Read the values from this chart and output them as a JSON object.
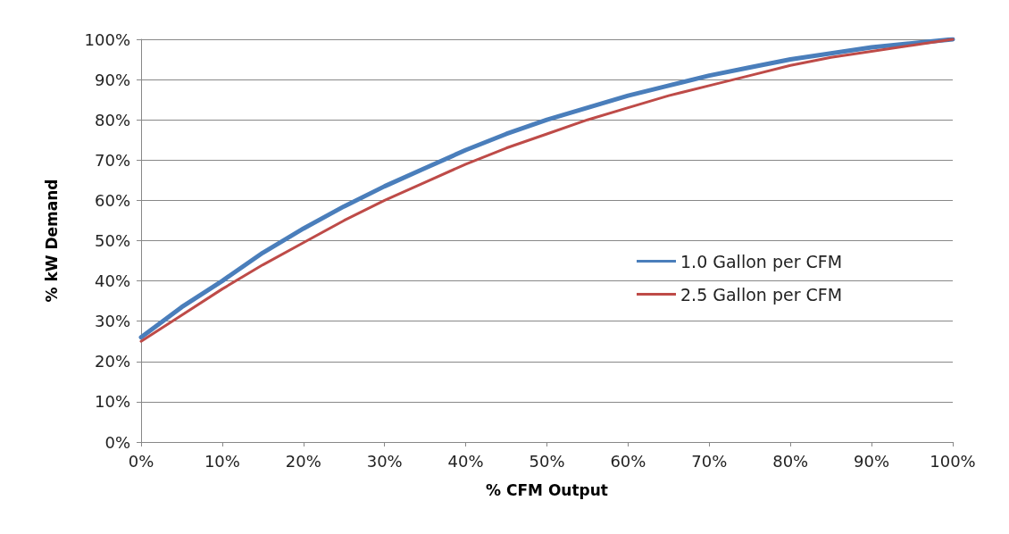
{
  "chart_data": {
    "type": "line",
    "xlabel": "% CFM Output",
    "ylabel": "% kW Demand",
    "x": [
      0,
      5,
      10,
      15,
      20,
      25,
      30,
      35,
      40,
      45,
      50,
      55,
      60,
      65,
      70,
      75,
      80,
      85,
      90,
      95,
      100
    ],
    "series": [
      {
        "name": "1.0 Gallon per CFM",
        "color": "#4a7ebb",
        "values": [
          26,
          33.5,
          40,
          47,
          53,
          58.5,
          63.5,
          68,
          72.5,
          76.5,
          80,
          83,
          86,
          88.5,
          91,
          93,
          95,
          96.5,
          98,
          99,
          100
        ]
      },
      {
        "name": "2.5 Gallon per CFM",
        "color": "#be4b48",
        "values": [
          25,
          31.5,
          38,
          44,
          49.5,
          55,
          60,
          64.5,
          69,
          73,
          76.5,
          80,
          83,
          86,
          88.5,
          91,
          93.5,
          95.5,
          97,
          98.5,
          100
        ]
      }
    ],
    "xlim": [
      0,
      100
    ],
    "xticks": [
      {
        "value": 0,
        "label": "0%"
      },
      {
        "value": 10,
        "label": "10%"
      },
      {
        "value": 20,
        "label": "20%"
      },
      {
        "value": 30,
        "label": "30%"
      },
      {
        "value": 40,
        "label": "40%"
      },
      {
        "value": 50,
        "label": "50%"
      },
      {
        "value": 60,
        "label": "60%"
      },
      {
        "value": 70,
        "label": "70%"
      },
      {
        "value": 80,
        "label": "80%"
      },
      {
        "value": 90,
        "label": "90%"
      },
      {
        "value": 100,
        "label": "100%"
      }
    ],
    "ylim": [
      0,
      100
    ],
    "yticks": [
      {
        "value": 0,
        "label": "0%"
      },
      {
        "value": 10,
        "label": "10%"
      },
      {
        "value": 20,
        "label": "20%"
      },
      {
        "value": 30,
        "label": "30%"
      },
      {
        "value": 40,
        "label": "40%"
      },
      {
        "value": 50,
        "label": "50%"
      },
      {
        "value": 60,
        "label": "60%"
      },
      {
        "value": 70,
        "label": "70%"
      },
      {
        "value": 80,
        "label": "80%"
      },
      {
        "value": 90,
        "label": "90%"
      },
      {
        "value": 100,
        "label": "100%"
      }
    ],
    "grid": "y",
    "legend": "right",
    "marker": "none",
    "line_style": "solid"
  }
}
